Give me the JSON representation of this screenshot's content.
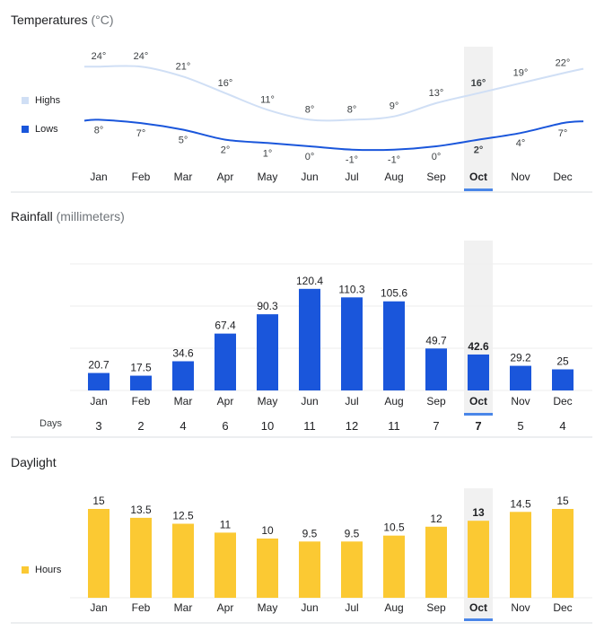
{
  "colors": {
    "highs": "#d0dff5",
    "lows": "#1a56db",
    "rain": "#1a56db",
    "daylight": "#fbc933",
    "highlight_band": "#f1f1f1",
    "selected_tab": "#4a86e8",
    "axis": "#dadce0",
    "grid": "#eeeeee"
  },
  "months": [
    "Jan",
    "Feb",
    "Mar",
    "Apr",
    "May",
    "Jun",
    "Jul",
    "Aug",
    "Sep",
    "Oct",
    "Nov",
    "Dec"
  ],
  "selected_month_index": 9,
  "temperature": {
    "title": "Temperatures",
    "unit": "(°C)",
    "legend_highs": "Highs",
    "legend_lows": "Lows",
    "highs_labels": [
      "24°",
      "24°",
      "21°",
      "16°",
      "11°",
      "8°",
      "8°",
      "9°",
      "13°",
      "16°",
      "19°",
      "22°"
    ],
    "lows_labels": [
      "8°",
      "7°",
      "5°",
      "2°",
      "1°",
      "0°",
      "-1°",
      "-1°",
      "0°",
      "2°",
      "4°",
      "7°"
    ]
  },
  "rainfall": {
    "title": "Rainfall",
    "unit": "(millimeters)",
    "value_labels": [
      "20.7",
      "17.5",
      "34.6",
      "67.4",
      "90.3",
      "120.4",
      "110.3",
      "105.6",
      "49.7",
      "42.6",
      "29.2",
      "25"
    ],
    "days_label": "Days",
    "days": [
      "3",
      "2",
      "4",
      "6",
      "10",
      "11",
      "12",
      "11",
      "7",
      "7",
      "5",
      "4"
    ]
  },
  "daylight": {
    "title": "Daylight",
    "legend": "Hours",
    "value_labels": [
      "15",
      "13.5",
      "12.5",
      "11",
      "10",
      "9.5",
      "9.5",
      "10.5",
      "12",
      "13",
      "14.5",
      "15"
    ]
  },
  "chart_data": [
    {
      "type": "line",
      "title": "Temperatures (°C)",
      "categories": [
        "Jan",
        "Feb",
        "Mar",
        "Apr",
        "May",
        "Jun",
        "Jul",
        "Aug",
        "Sep",
        "Oct",
        "Nov",
        "Dec"
      ],
      "series": [
        {
          "name": "Highs",
          "values": [
            24,
            24,
            21,
            16,
            11,
            8,
            8,
            9,
            13,
            16,
            19,
            22
          ]
        },
        {
          "name": "Lows",
          "values": [
            8,
            7,
            5,
            2,
            1,
            0,
            -1,
            -1,
            0,
            2,
            4,
            7
          ]
        }
      ],
      "legend_placement": "left"
    },
    {
      "type": "bar",
      "title": "Rainfall (millimeters)",
      "categories": [
        "Jan",
        "Feb",
        "Mar",
        "Apr",
        "May",
        "Jun",
        "Jul",
        "Aug",
        "Sep",
        "Oct",
        "Nov",
        "Dec"
      ],
      "values": [
        20.7,
        17.5,
        34.6,
        67.4,
        90.3,
        120.4,
        110.3,
        105.6,
        49.7,
        42.6,
        29.2,
        25
      ],
      "ylim": [
        0,
        150
      ],
      "grid": true
    },
    {
      "type": "bar",
      "title": "Daylight",
      "categories": [
        "Jan",
        "Feb",
        "Mar",
        "Apr",
        "May",
        "Jun",
        "Jul",
        "Aug",
        "Sep",
        "Oct",
        "Nov",
        "Dec"
      ],
      "series": [
        {
          "name": "Hours",
          "values": [
            15,
            13.5,
            12.5,
            11,
            10,
            9.5,
            9.5,
            10.5,
            12,
            13,
            14.5,
            15
          ]
        }
      ],
      "ylim": [
        0,
        15
      ],
      "legend_placement": "left"
    }
  ]
}
